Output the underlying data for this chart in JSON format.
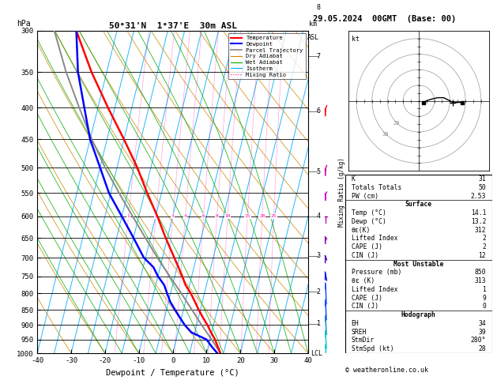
{
  "title_left": "50°31'N  1°37'E  30m ASL",
  "title_right": "29.05.2024  00GMT  (Base: 00)",
  "xlabel": "Dewpoint / Temperature (°C)",
  "ylabel_left": "hPa",
  "pressure_ticks": [
    300,
    350,
    400,
    450,
    500,
    550,
    600,
    650,
    700,
    750,
    800,
    850,
    900,
    950,
    1000
  ],
  "temp_min": -40,
  "temp_max": 40,
  "p_min": 300,
  "p_max": 1000,
  "skew_degC_per_log10p": 45,
  "isotherm_color": "#00aaff",
  "isotherm_lw": 0.7,
  "dry_adiabat_color": "#cc8800",
  "dry_adiabat_lw": 0.6,
  "wet_adiabat_color": "#00aa00",
  "wet_adiabat_lw": 0.6,
  "mixing_ratio_color": "#ff00aa",
  "mixing_ratio_lw": 0.5,
  "mixing_ratio_values": [
    1,
    2,
    3,
    4,
    6,
    8,
    10,
    15,
    20,
    25
  ],
  "temperature_profile": {
    "pressure": [
      1000,
      975,
      950,
      925,
      900,
      875,
      850,
      825,
      800,
      775,
      750,
      725,
      700,
      650,
      600,
      550,
      500,
      450,
      400,
      350,
      300
    ],
    "temperature": [
      14.1,
      12.8,
      11.5,
      9.8,
      8.2,
      6.3,
      4.5,
      2.8,
      1.0,
      -1.2,
      -2.8,
      -4.6,
      -6.5,
      -10.5,
      -14.5,
      -19.2,
      -24.0,
      -30.0,
      -37.0,
      -44.5,
      -52.0
    ],
    "color": "#ff0000",
    "linewidth": 1.8
  },
  "dewpoint_profile": {
    "pressure": [
      1000,
      975,
      950,
      925,
      900,
      875,
      850,
      825,
      800,
      775,
      750,
      725,
      700,
      650,
      600,
      550,
      500,
      450,
      400,
      350,
      300
    ],
    "temperature": [
      13.2,
      11.0,
      9.0,
      4.0,
      1.5,
      -0.5,
      -2.5,
      -4.5,
      -6.0,
      -7.5,
      -10.0,
      -12.0,
      -15.5,
      -20.0,
      -25.0,
      -30.5,
      -35.0,
      -40.0,
      -44.0,
      -48.5,
      -52.0
    ],
    "color": "#0000ff",
    "linewidth": 1.8
  },
  "parcel_trajectory": {
    "pressure": [
      1000,
      950,
      900,
      850,
      800,
      750,
      700,
      650,
      600,
      550,
      500,
      450,
      400,
      350,
      300
    ],
    "temperature": [
      14.1,
      10.5,
      6.5,
      2.5,
      -1.8,
      -6.5,
      -11.5,
      -16.5,
      -21.8,
      -27.5,
      -33.5,
      -39.5,
      -45.5,
      -52.0,
      -58.5
    ],
    "color": "#888888",
    "linewidth": 1.4
  },
  "km_ticks": [
    1,
    2,
    3,
    4,
    5,
    6,
    7,
    8
  ],
  "km_pressures": [
    895,
    795,
    695,
    600,
    508,
    405,
    330,
    275
  ],
  "wind_barbs": [
    {
      "pressure": 1000,
      "direction": 225,
      "speed": 8,
      "color": "#00cccc"
    },
    {
      "pressure": 950,
      "direction": 225,
      "speed": 10,
      "color": "#00cccc"
    },
    {
      "pressure": 900,
      "direction": 220,
      "speed": 12,
      "color": "#0088cc"
    },
    {
      "pressure": 850,
      "direction": 215,
      "speed": 15,
      "color": "#0044ff"
    },
    {
      "pressure": 800,
      "direction": 210,
      "speed": 18,
      "color": "#0044ff"
    },
    {
      "pressure": 750,
      "direction": 250,
      "speed": 20,
      "color": "#0000ff"
    },
    {
      "pressure": 700,
      "direction": 260,
      "speed": 22,
      "color": "#4400aa"
    },
    {
      "pressure": 650,
      "direction": 265,
      "speed": 25,
      "color": "#8800aa"
    },
    {
      "pressure": 600,
      "direction": 270,
      "speed": 28,
      "color": "#aa00aa"
    },
    {
      "pressure": 550,
      "direction": 275,
      "speed": 30,
      "color": "#cc00cc"
    },
    {
      "pressure": 500,
      "direction": 280,
      "speed": 28,
      "color": "#cc00aa"
    },
    {
      "pressure": 400,
      "direction": 280,
      "speed": 25,
      "color": "#ff0000"
    }
  ],
  "table_data": {
    "K": "31",
    "Totals Totals": "50",
    "PW (cm)": "2.53",
    "surface_temp": "14.1",
    "surface_dewp": "13.2",
    "surface_theta_e": "312",
    "surface_lifted_index": "2",
    "surface_cape": "2",
    "surface_cin": "12",
    "mu_pressure": "850",
    "mu_theta_e": "313",
    "mu_lifted_index": "1",
    "mu_cape": "9",
    "mu_cin": "0",
    "EH": "34",
    "SREH": "39",
    "StmDir": "280°",
    "StmSpd": "28"
  },
  "copyright": "© weatheronline.co.uk",
  "legend_entries": [
    {
      "label": "Temperature",
      "color": "#ff0000",
      "lw": 1.5,
      "ls": "-",
      "dot": false
    },
    {
      "label": "Dewpoint",
      "color": "#0000ff",
      "lw": 1.5,
      "ls": "-",
      "dot": false
    },
    {
      "label": "Parcel Trajectory",
      "color": "#888888",
      "lw": 1.2,
      "ls": "-",
      "dot": false
    },
    {
      "label": "Dry Adiabat",
      "color": "#cc8800",
      "lw": 0.8,
      "ls": "-",
      "dot": false
    },
    {
      "label": "Wet Adiabat",
      "color": "#00aa00",
      "lw": 0.8,
      "ls": "-",
      "dot": false
    },
    {
      "label": "Isotherm",
      "color": "#00aaff",
      "lw": 0.8,
      "ls": "-",
      "dot": false
    },
    {
      "label": "Mixing Ratio",
      "color": "#ff00aa",
      "lw": 0.8,
      "ls": ":",
      "dot": true
    }
  ]
}
